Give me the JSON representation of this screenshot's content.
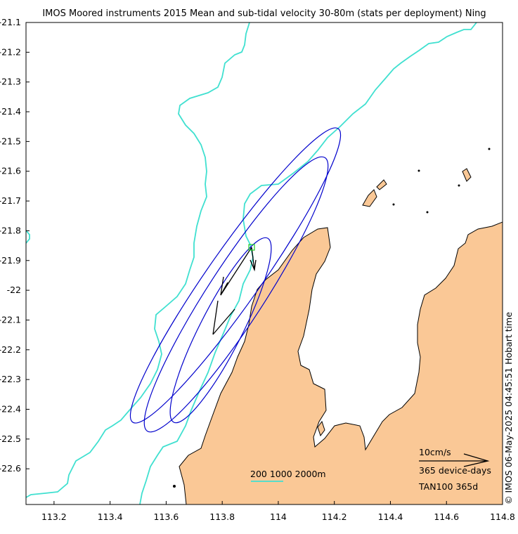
{
  "title": "IMOS Moored instruments 2015 Mean and sub-tidal velocity 30-80m (stats per deployment) Ning",
  "colors": {
    "land": "#fac896",
    "coastline": "#000000",
    "isobath": "#40e0d0",
    "ellipse": "#0000cc",
    "arrow": "#000000",
    "station": "#22cc22",
    "frame": "#000000"
  },
  "axes": {
    "x_ticks": [
      "113.2",
      "113.4",
      "113.6",
      "113.8",
      "114",
      "114.2",
      "114.4",
      "114.6",
      "114.8"
    ],
    "y_ticks": [
      "-21.1",
      "-21.2",
      "-21.3",
      "-21.4",
      "-21.5",
      "-21.6",
      "-21.7",
      "-21.8",
      "-21.9",
      "-22",
      "-22.1",
      "-22.2",
      "-22.3",
      "-22.4",
      "-22.5",
      "-22.6"
    ],
    "x_range": [
      113.1,
      114.8
    ],
    "y_range": [
      -22.72,
      -21.1
    ]
  },
  "legend": {
    "isobaths": "200 1000 2000m",
    "speed_scale": "10cm/s",
    "duration": "365 device-days",
    "station_summary": "TAN100 365d"
  },
  "station": {
    "name": "TAN100",
    "lon": 113.91,
    "lat": -21.86
  },
  "velocity_vectors": [
    {
      "type": "mean",
      "u_cms": -4.5,
      "v_cms": -13.0
    },
    {
      "type": "mean",
      "u_cms": 0.3,
      "v_cms": -5.0
    },
    {
      "type": "sub-tidal",
      "u_cms": 6.5,
      "v_cms": 14.0
    }
  ],
  "credit": "© IMOS 06-May-2025 04:45:51 Hobart time"
}
